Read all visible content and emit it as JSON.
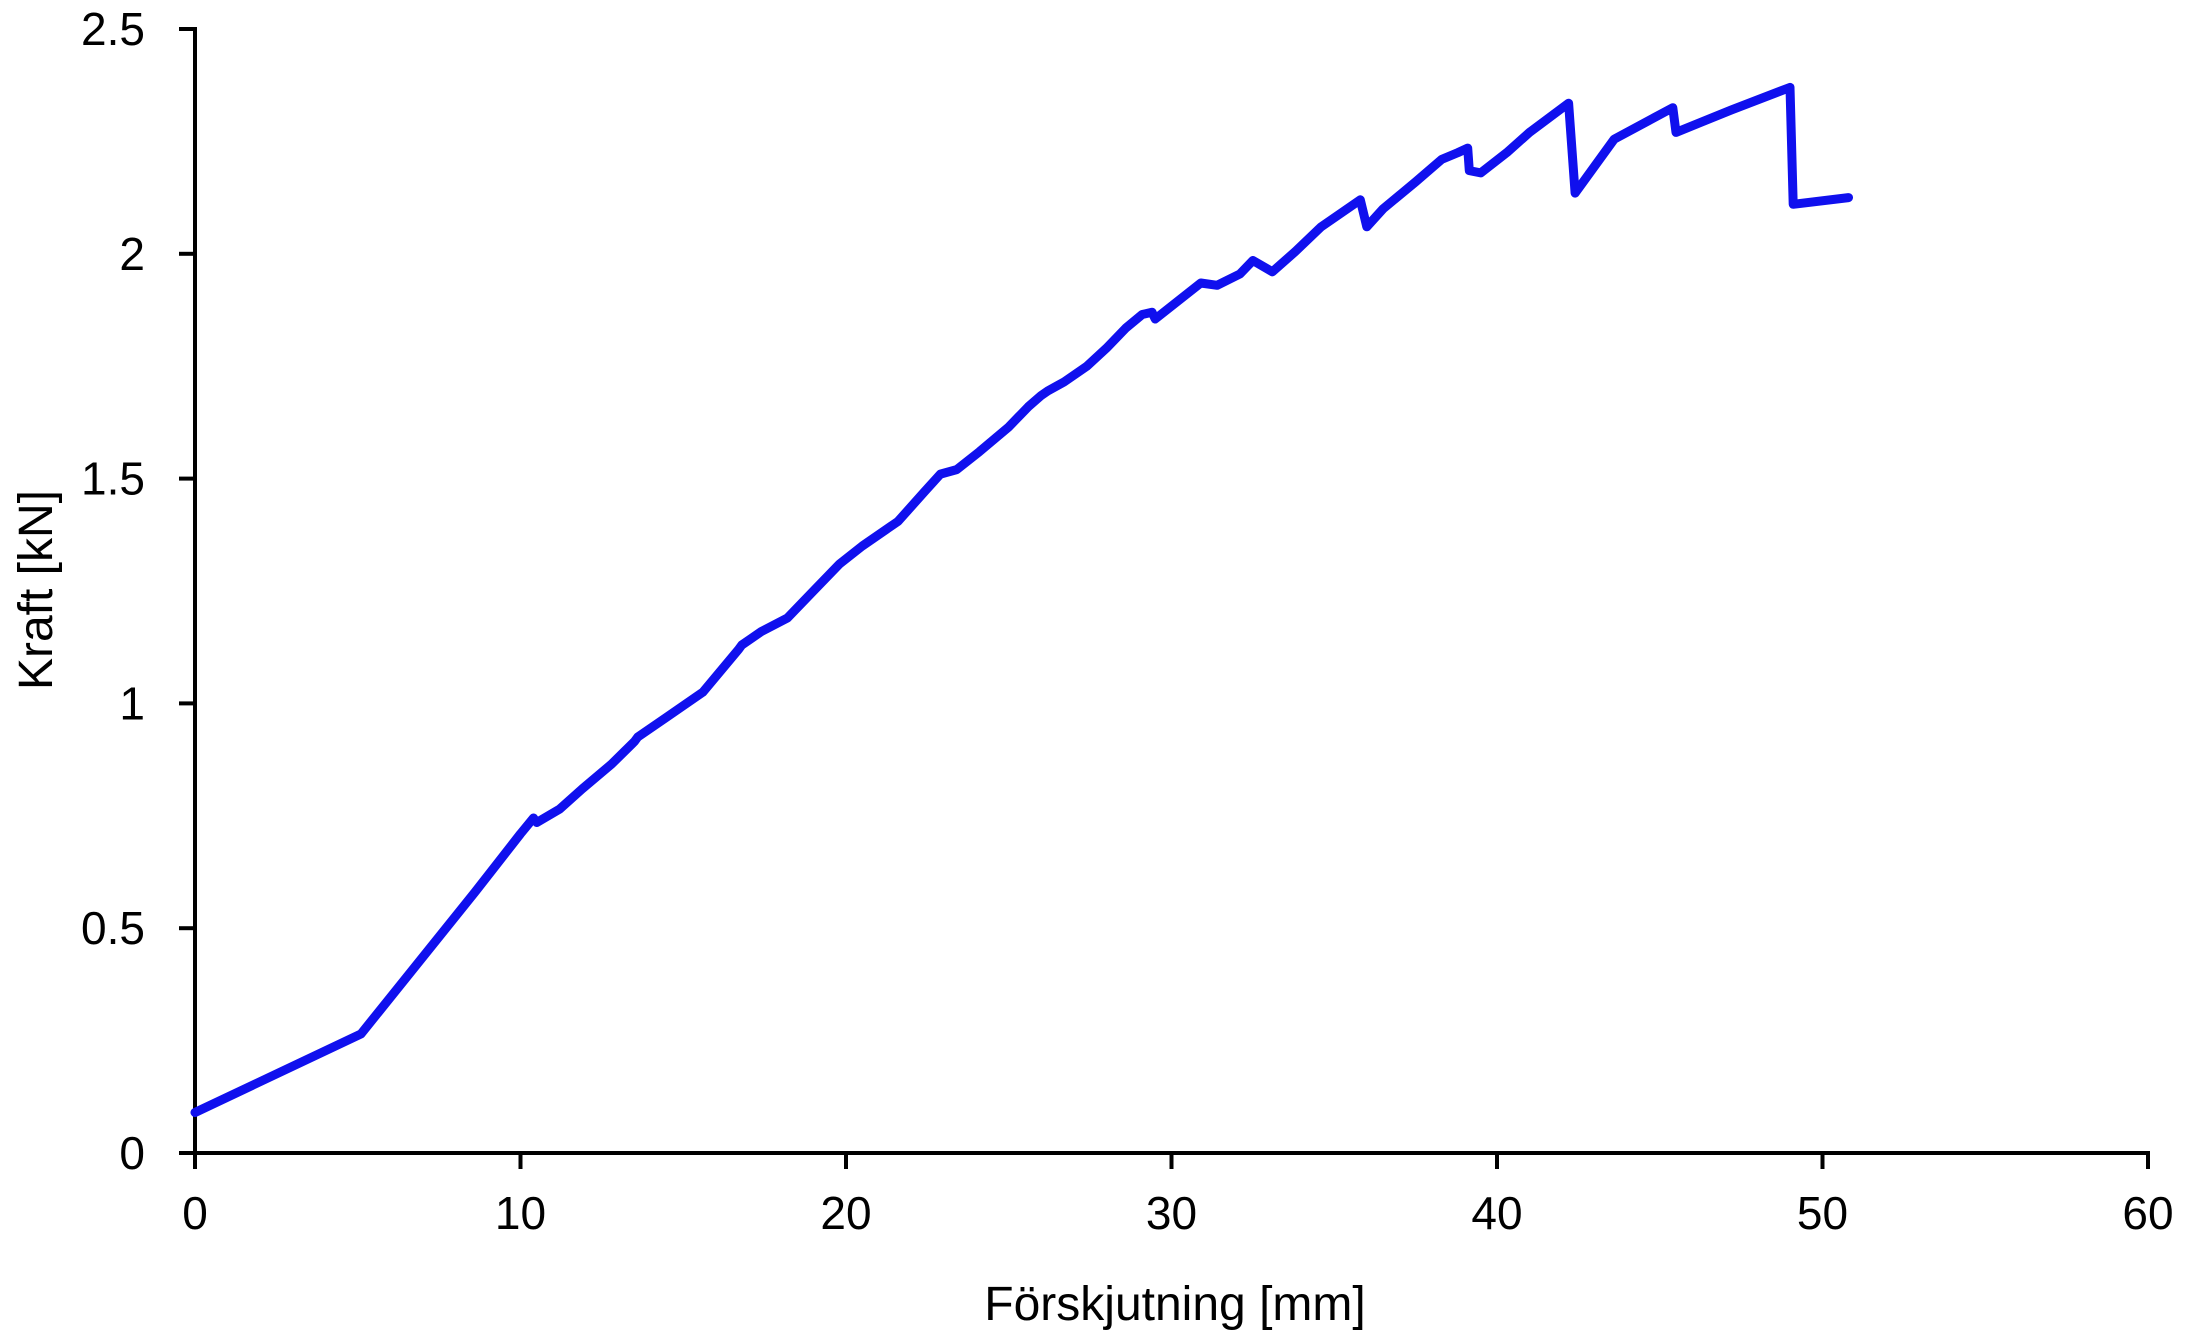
{
  "chart_data": {
    "type": "line",
    "title": "",
    "xlabel": "Förskjutning [mm]",
    "ylabel": "Kraft [kN]",
    "xlim": [
      0,
      60
    ],
    "ylim": [
      0,
      2.5
    ],
    "x_ticks": [
      0,
      10,
      20,
      30,
      40,
      50,
      60
    ],
    "x_tick_labels": [
      "0",
      "10",
      "20",
      "30",
      "40",
      "50",
      "60"
    ],
    "y_ticks": [
      0,
      0.5,
      1,
      1.5,
      2,
      2.5
    ],
    "y_tick_labels": [
      "0",
      "0.5",
      "1",
      "1.5",
      "2",
      "2.5"
    ],
    "grid": false,
    "legend": "none",
    "series": [
      {
        "color": "#1010ee",
        "x": [
          0.0,
          5.1,
          8.6,
          10.0,
          10.4,
          10.5,
          11.2,
          11.9,
          12.8,
          13.5,
          13.6,
          14.5,
          15.6,
          16.7,
          16.8,
          17.4,
          18.2,
          19.0,
          19.8,
          20.5,
          21.6,
          22.4,
          22.9,
          23.4,
          24.1,
          25.0,
          25.6,
          26.0,
          26.2,
          26.7,
          27.4,
          28.0,
          28.6,
          29.1,
          29.4,
          29.5,
          30.2,
          30.9,
          31.4,
          32.1,
          32.5,
          33.1,
          33.8,
          34.6,
          35.3,
          35.8,
          36.0,
          36.5,
          37.5,
          38.3,
          38.8,
          39.1,
          39.15,
          39.5,
          40.3,
          41.0,
          42.2,
          42.4,
          43.6,
          45.4,
          45.5,
          47.2,
          49.0,
          49.1,
          50.8
        ],
        "y": [
          0.09,
          0.265,
          0.58,
          0.71,
          0.745,
          0.735,
          0.765,
          0.81,
          0.865,
          0.915,
          0.925,
          0.97,
          1.025,
          1.12,
          1.13,
          1.16,
          1.19,
          1.25,
          1.31,
          1.35,
          1.405,
          1.47,
          1.51,
          1.52,
          1.56,
          1.615,
          1.66,
          1.685,
          1.695,
          1.715,
          1.75,
          1.79,
          1.835,
          1.865,
          1.87,
          1.855,
          1.895,
          1.935,
          1.93,
          1.955,
          1.985,
          1.96,
          2.005,
          2.06,
          2.095,
          2.12,
          2.06,
          2.1,
          2.16,
          2.21,
          2.225,
          2.235,
          2.185,
          2.18,
          2.225,
          2.27,
          2.335,
          2.135,
          2.255,
          2.325,
          2.27,
          2.32,
          2.37,
          2.11,
          2.125
        ]
      }
    ]
  }
}
